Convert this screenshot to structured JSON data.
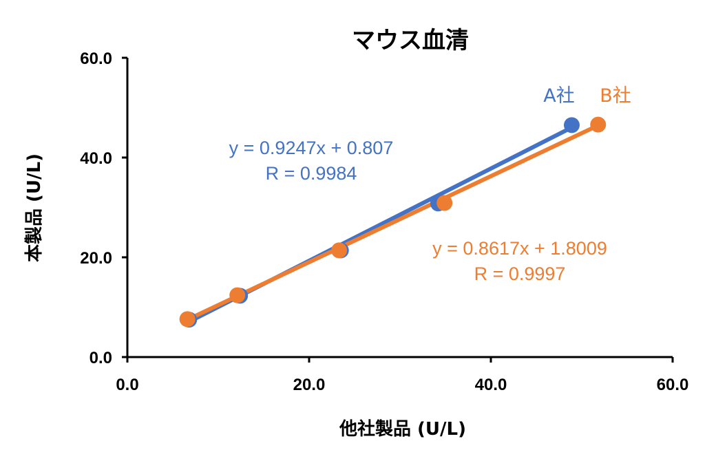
{
  "chart_data": {
    "type": "scatter",
    "title": "マウス血清",
    "xlabel": "他社製品 (U/L)",
    "ylabel": "本製品 (U/L)",
    "xlim": [
      0,
      60
    ],
    "ylim": [
      0,
      60
    ],
    "x_ticks": [
      "0.0",
      "20.0",
      "40.0",
      "60.0"
    ],
    "y_ticks": [
      "0.0",
      "20.0",
      "40.0",
      "60.0"
    ],
    "grid": false,
    "series": [
      {
        "name": "A社",
        "color": "#4472C4",
        "x": [
          6.8,
          12.4,
          23.5,
          34.2,
          48.9
        ],
        "y": [
          7.5,
          12.3,
          21.4,
          30.8,
          46.5
        ],
        "trendline": {
          "equation": "y = 0.9247x + 0.807",
          "r": "R = 0.9984",
          "slope": 0.9247,
          "intercept": 0.807
        }
      },
      {
        "name": "B社",
        "color": "#ED7D31",
        "x": [
          6.6,
          12.1,
          23.3,
          34.9,
          51.8
        ],
        "y": [
          7.6,
          12.4,
          21.4,
          30.9,
          46.6
        ],
        "trendline": {
          "equation": "y = 0.8617x + 1.8009",
          "r": "R = 0.9997",
          "slope": 0.8617,
          "intercept": 1.8009
        }
      }
    ]
  }
}
